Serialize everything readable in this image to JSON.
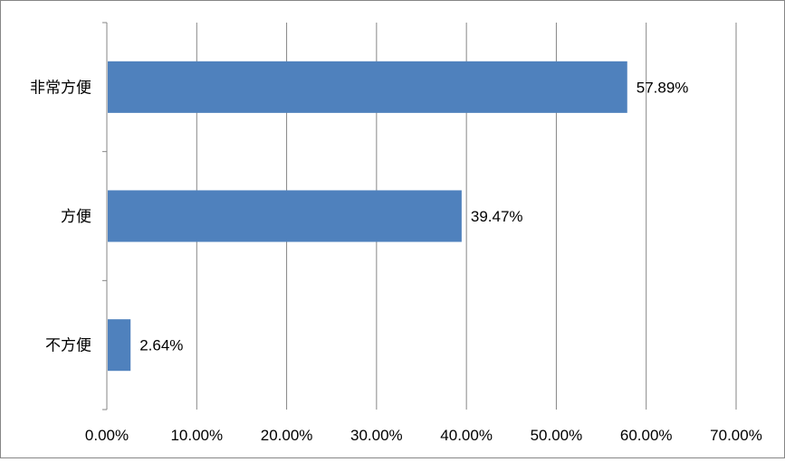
{
  "chart_data": {
    "type": "bar",
    "orientation": "horizontal",
    "title": "",
    "xlabel": "",
    "ylabel": "",
    "categories": [
      "非常方便",
      "方便",
      "不方便"
    ],
    "values": [
      57.89,
      39.47,
      2.64
    ],
    "data_labels": [
      "57.89%",
      "39.47%",
      "2.64%"
    ],
    "xlim": [
      0,
      70
    ],
    "x_ticks": [
      0,
      10,
      20,
      30,
      40,
      50,
      60,
      70
    ],
    "x_tick_labels": [
      "0.00%",
      "10.00%",
      "20.00%",
      "30.00%",
      "40.00%",
      "50.00%",
      "60.00%",
      "70.00%"
    ],
    "grid": true,
    "legend": "none",
    "bar_color": "#4F81BD",
    "grid_color": "#868686"
  }
}
